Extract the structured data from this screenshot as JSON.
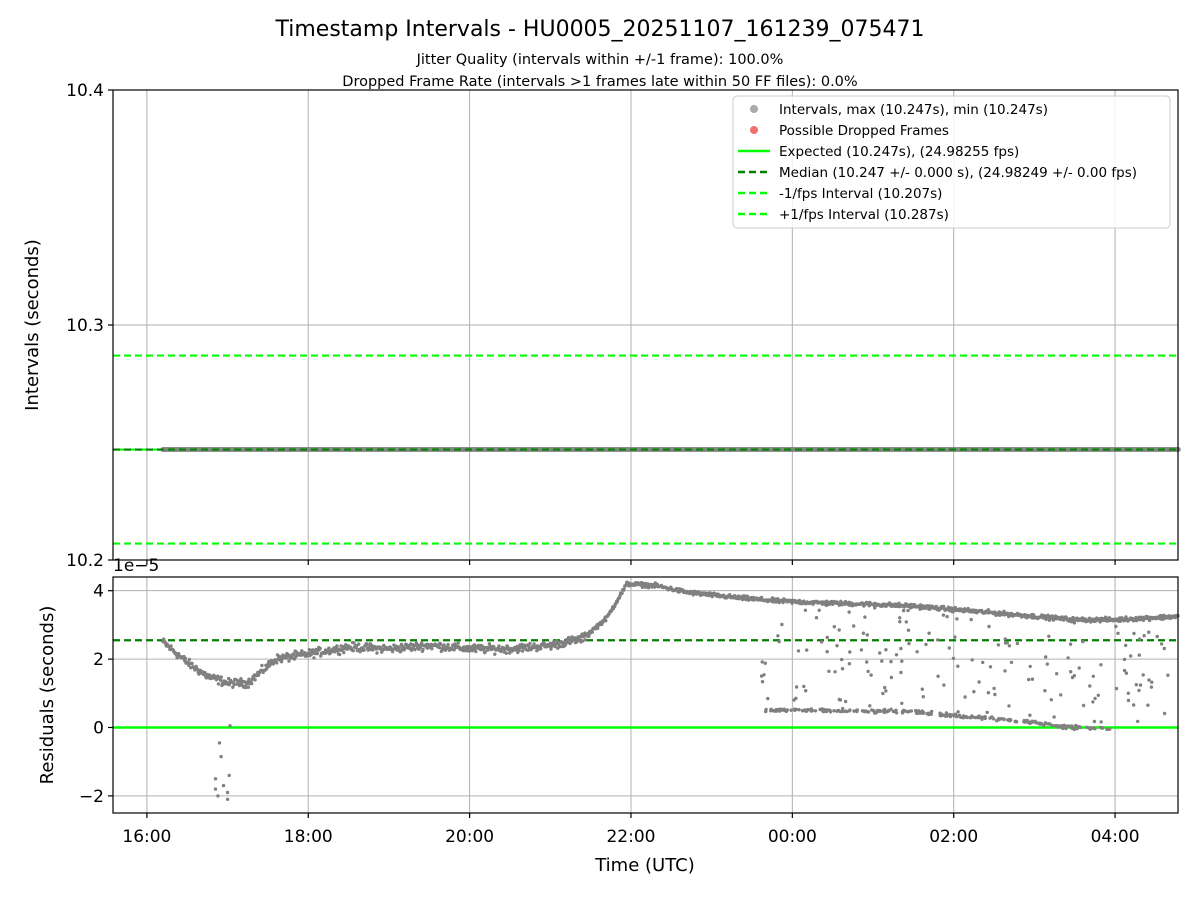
{
  "chart_data": [
    {
      "type": "scatter",
      "title": "Timestamp Intervals - HU0005_20251107_161239_075471",
      "subtitle_lines": [
        "Jitter Quality (intervals within +/-1 frame): 100.0%",
        "Dropped Frame Rate (intervals >1 frames late within 50 FF files): 0.0%"
      ],
      "xlabel": "",
      "ylabel": "Intervals (seconds)",
      "ylim": [
        10.2,
        10.4
      ],
      "yticks": [
        "10.2",
        "10.3",
        "10.4"
      ],
      "xlim_hours": [
        15.58,
        28.78
      ],
      "xticks": [
        "16:00",
        "18:00",
        "20:00",
        "22:00",
        "00:00",
        "02:00",
        "04:00"
      ],
      "grid": true,
      "legend_position": "top-right",
      "legend": [
        {
          "label": "Intervals, max (10.247s), min (10.247s)",
          "kind": "marker",
          "color": "#a9a9a9"
        },
        {
          "label": "Possible Dropped Frames",
          "kind": "marker",
          "color": "#f07070"
        },
        {
          "label": "Expected (10.247s), (24.98255 fps)",
          "kind": "solid",
          "color": "#00ff00"
        },
        {
          "label": "Median (10.247 +/- 0.000 s), (24.98249 +/- 0.00 fps)",
          "kind": "dashed",
          "color": "#007f00"
        },
        {
          "label": "-1/fps Interval (10.207s)",
          "kind": "dashed",
          "color": "#00ff00"
        },
        {
          "label": "+1/fps Interval (10.287s)",
          "kind": "dashed",
          "color": "#00ff00"
        }
      ],
      "series": [
        {
          "name": "Intervals, max (10.247s), min (10.247s)",
          "x_start": "16:12",
          "x_end": "04:47",
          "y": 10.247,
          "color": "#808080"
        }
      ],
      "reference_lines": [
        {
          "name": "Expected",
          "y": 10.247,
          "style": "solid",
          "color": "#00ff00"
        },
        {
          "name": "Median",
          "y": 10.247,
          "style": "dashed",
          "color": "#007f00"
        },
        {
          "name": "-1/fps Interval",
          "y": 10.207,
          "style": "dashed",
          "color": "#00ff00"
        },
        {
          "name": "+1/fps Interval",
          "y": 10.287,
          "style": "dashed",
          "color": "#00ff00"
        }
      ]
    },
    {
      "type": "scatter",
      "title": "",
      "xlabel": "Time (UTC)",
      "ylabel": "Residuals (seconds)",
      "offset_label": "1e−5",
      "ylim": [
        -2.5,
        4.4
      ],
      "yticks": [
        "−2",
        "0",
        "2",
        "4"
      ],
      "xticks": [
        "16:00",
        "18:00",
        "20:00",
        "22:00",
        "00:00",
        "02:00",
        "04:00"
      ],
      "grid": true,
      "residual_color": "#808080",
      "expected_line": {
        "y": 0,
        "style": "solid",
        "color": "#00ff00"
      },
      "median_line": {
        "y": 2.55,
        "style": "dashed",
        "color": "#007f00"
      },
      "main_trend": {
        "x_hours": [
          16.2,
          16.5,
          16.75,
          17.0,
          17.25,
          17.6,
          18.0,
          18.5,
          19.0,
          19.5,
          20.0,
          20.5,
          21.0,
          21.4,
          21.7,
          21.95,
          22.3,
          22.7,
          23.3,
          23.8,
          24.3,
          25.0,
          25.5,
          26.0,
          26.5,
          27.0,
          27.5,
          28.0,
          28.78
        ],
        "y": [
          2.5,
          1.9,
          1.5,
          1.3,
          1.3,
          2.0,
          2.15,
          2.35,
          2.3,
          2.4,
          2.3,
          2.3,
          2.4,
          2.6,
          3.2,
          4.2,
          4.15,
          3.95,
          3.8,
          3.7,
          3.65,
          3.6,
          3.55,
          3.45,
          3.35,
          3.25,
          3.15,
          3.15,
          3.25
        ]
      },
      "lower_band": {
        "x_hours": [
          23.65,
          24.5,
          25.5,
          26.0,
          26.5,
          27.0,
          27.5,
          28.0
        ],
        "y": [
          0.5,
          0.5,
          0.45,
          0.35,
          0.25,
          0.15,
          0.0,
          -0.05
        ]
      },
      "outliers": [
        {
          "x_hours": 16.85,
          "y": -1.5
        },
        {
          "x_hours": 16.85,
          "y": -1.8
        },
        {
          "x_hours": 16.88,
          "y": -2.0
        },
        {
          "x_hours": 16.9,
          "y": -0.45
        },
        {
          "x_hours": 16.92,
          "y": -0.85
        },
        {
          "x_hours": 16.95,
          "y": -1.7
        },
        {
          "x_hours": 17.0,
          "y": -2.1
        },
        {
          "x_hours": 17.02,
          "y": -1.4
        },
        {
          "x_hours": 17.03,
          "y": 0.05
        },
        {
          "x_hours": 17.0,
          "y": -1.9
        }
      ]
    }
  ]
}
